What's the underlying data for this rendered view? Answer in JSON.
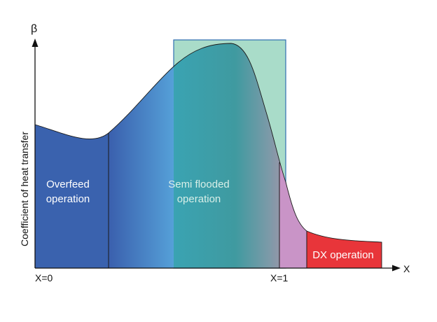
{
  "diagram": {
    "y_axis_symbol": "β",
    "y_axis_title": "Coefficient of heat transfer",
    "x_axis_symbol": "X",
    "x_tick_left": "X=0",
    "x_tick_right": "X=1",
    "regions": {
      "overfeed_line1": "Overfeed",
      "overfeed_line2": "operation",
      "semi_line1": "Semi flooded",
      "semi_line2": "operation",
      "dx": "DX operation"
    },
    "colors": {
      "overfeed": "#3a62ae",
      "transition": "#5095d2",
      "semi_flooded_box": "#a9dcc9",
      "semi_flooded_fill": "#3f9ea7",
      "superheat": "#c994c7",
      "dx": "#e8353a",
      "axis": "#111111"
    }
  }
}
